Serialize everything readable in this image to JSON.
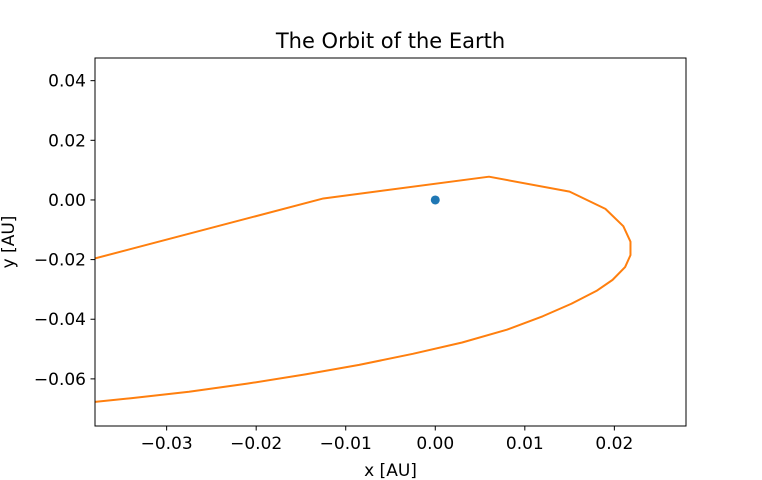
{
  "chart_data": {
    "type": "line",
    "title": "The Orbit of the Earth",
    "xlabel": "x [AU]",
    "ylabel": "y [AU]",
    "xlim": [
      -0.038,
      0.028
    ],
    "ylim": [
      -0.0758,
      0.0476
    ],
    "grid": false,
    "x_ticks": [
      {
        "value": -0.03,
        "label": "−0.03"
      },
      {
        "value": -0.02,
        "label": "−0.02"
      },
      {
        "value": -0.01,
        "label": "−0.01"
      },
      {
        "value": 0.0,
        "label": "0.00"
      },
      {
        "value": 0.01,
        "label": "0.01"
      },
      {
        "value": 0.02,
        "label": "0.02"
      }
    ],
    "y_ticks": [
      {
        "value": 0.04,
        "label": "0.04"
      },
      {
        "value": 0.02,
        "label": "0.02"
      },
      {
        "value": 0.0,
        "label": "0.00"
      },
      {
        "value": -0.02,
        "label": "−0.02"
      },
      {
        "value": -0.04,
        "label": "−0.04"
      },
      {
        "value": -0.06,
        "label": "−0.06"
      }
    ],
    "series": [
      {
        "kind": "scatter",
        "color": "#1f77b4",
        "points": [
          {
            "x": 0.0,
            "y": 0.0
          }
        ]
      },
      {
        "kind": "line",
        "color": "#ff7f0e",
        "points": [
          {
            "x": -0.038,
            "y": -0.0196
          },
          {
            "x": -0.0125,
            "y": 0.0005
          },
          {
            "x": 0.006,
            "y": 0.0078
          },
          {
            "x": 0.015,
            "y": 0.0028
          },
          {
            "x": 0.019,
            "y": -0.003
          },
          {
            "x": 0.021,
            "y": -0.0088
          },
          {
            "x": 0.0218,
            "y": -0.014
          },
          {
            "x": 0.0218,
            "y": -0.0185
          },
          {
            "x": 0.0212,
            "y": -0.0225
          },
          {
            "x": 0.0198,
            "y": -0.0268
          },
          {
            "x": 0.018,
            "y": -0.0305
          },
          {
            "x": 0.0152,
            "y": -0.0348
          },
          {
            "x": 0.012,
            "y": -0.039
          },
          {
            "x": 0.008,
            "y": -0.0435
          },
          {
            "x": 0.003,
            "y": -0.0478
          },
          {
            "x": -0.0025,
            "y": -0.0516
          },
          {
            "x": -0.0085,
            "y": -0.0553
          },
          {
            "x": -0.0145,
            "y": -0.0585
          },
          {
            "x": -0.021,
            "y": -0.0616
          },
          {
            "x": -0.0275,
            "y": -0.0643
          },
          {
            "x": -0.034,
            "y": -0.0665
          },
          {
            "x": -0.038,
            "y": -0.0677
          }
        ]
      }
    ]
  }
}
